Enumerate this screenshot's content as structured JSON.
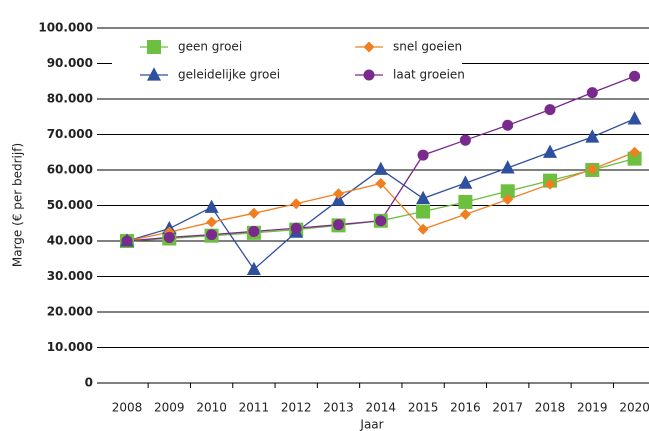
{
  "chart_data": {
    "type": "line",
    "y_label": "Marge (€ per bedrijf)",
    "x_label": "Jaar",
    "categories": [
      "2008",
      "2009",
      "2010",
      "2011",
      "2012",
      "2013",
      "2014",
      "2015",
      "2016",
      "2017",
      "2018",
      "2019",
      "2020"
    ],
    "series": [
      {
        "name": "geen groei",
        "color": "#6cbf3f",
        "marker": "square",
        "values": [
          40000,
          40700,
          41500,
          42300,
          43200,
          44400,
          45700,
          48300,
          51000,
          54000,
          57000,
          60000,
          63200
        ]
      },
      {
        "name": "geleidelijke groei",
        "color": "#2f4f9f",
        "marker": "triangle",
        "values": [
          40000,
          43500,
          49500,
          32000,
          42500,
          51500,
          60200,
          52000,
          56300,
          60600,
          65000,
          69300,
          74400
        ]
      },
      {
        "name": "snel goeien",
        "color": "#f07f22",
        "marker": "diamond",
        "values": [
          40000,
          42500,
          45300,
          47800,
          50500,
          53300,
          56200,
          43300,
          47500,
          51700,
          56000,
          60200,
          65000
        ]
      },
      {
        "name": "laat groeien",
        "color": "#7a2a8c",
        "marker": "circle",
        "values": [
          40000,
          41000,
          41800,
          42700,
          43600,
          44600,
          45700,
          64200,
          68400,
          72600,
          77000,
          81800,
          86400
        ]
      }
    ],
    "ylim": [
      0,
      100000
    ],
    "yticks": [
      0,
      {
        "value": 10000,
        "label": "10.000"
      },
      {
        "value": 20000,
        "label": "20.000"
      },
      {
        "value": 30000,
        "label": "30.000"
      },
      {
        "value": 40000,
        "label": "40.000"
      },
      {
        "value": 50000,
        "label": "50.000"
      },
      {
        "value": 60000,
        "label": "60.000"
      },
      {
        "value": 70000,
        "label": "70.000"
      },
      {
        "value": 80000,
        "label": "80.000"
      },
      {
        "value": 90000,
        "label": "90.000"
      },
      {
        "value": 100000,
        "label": "100.000"
      }
    ],
    "grid": true,
    "legend": "top"
  }
}
